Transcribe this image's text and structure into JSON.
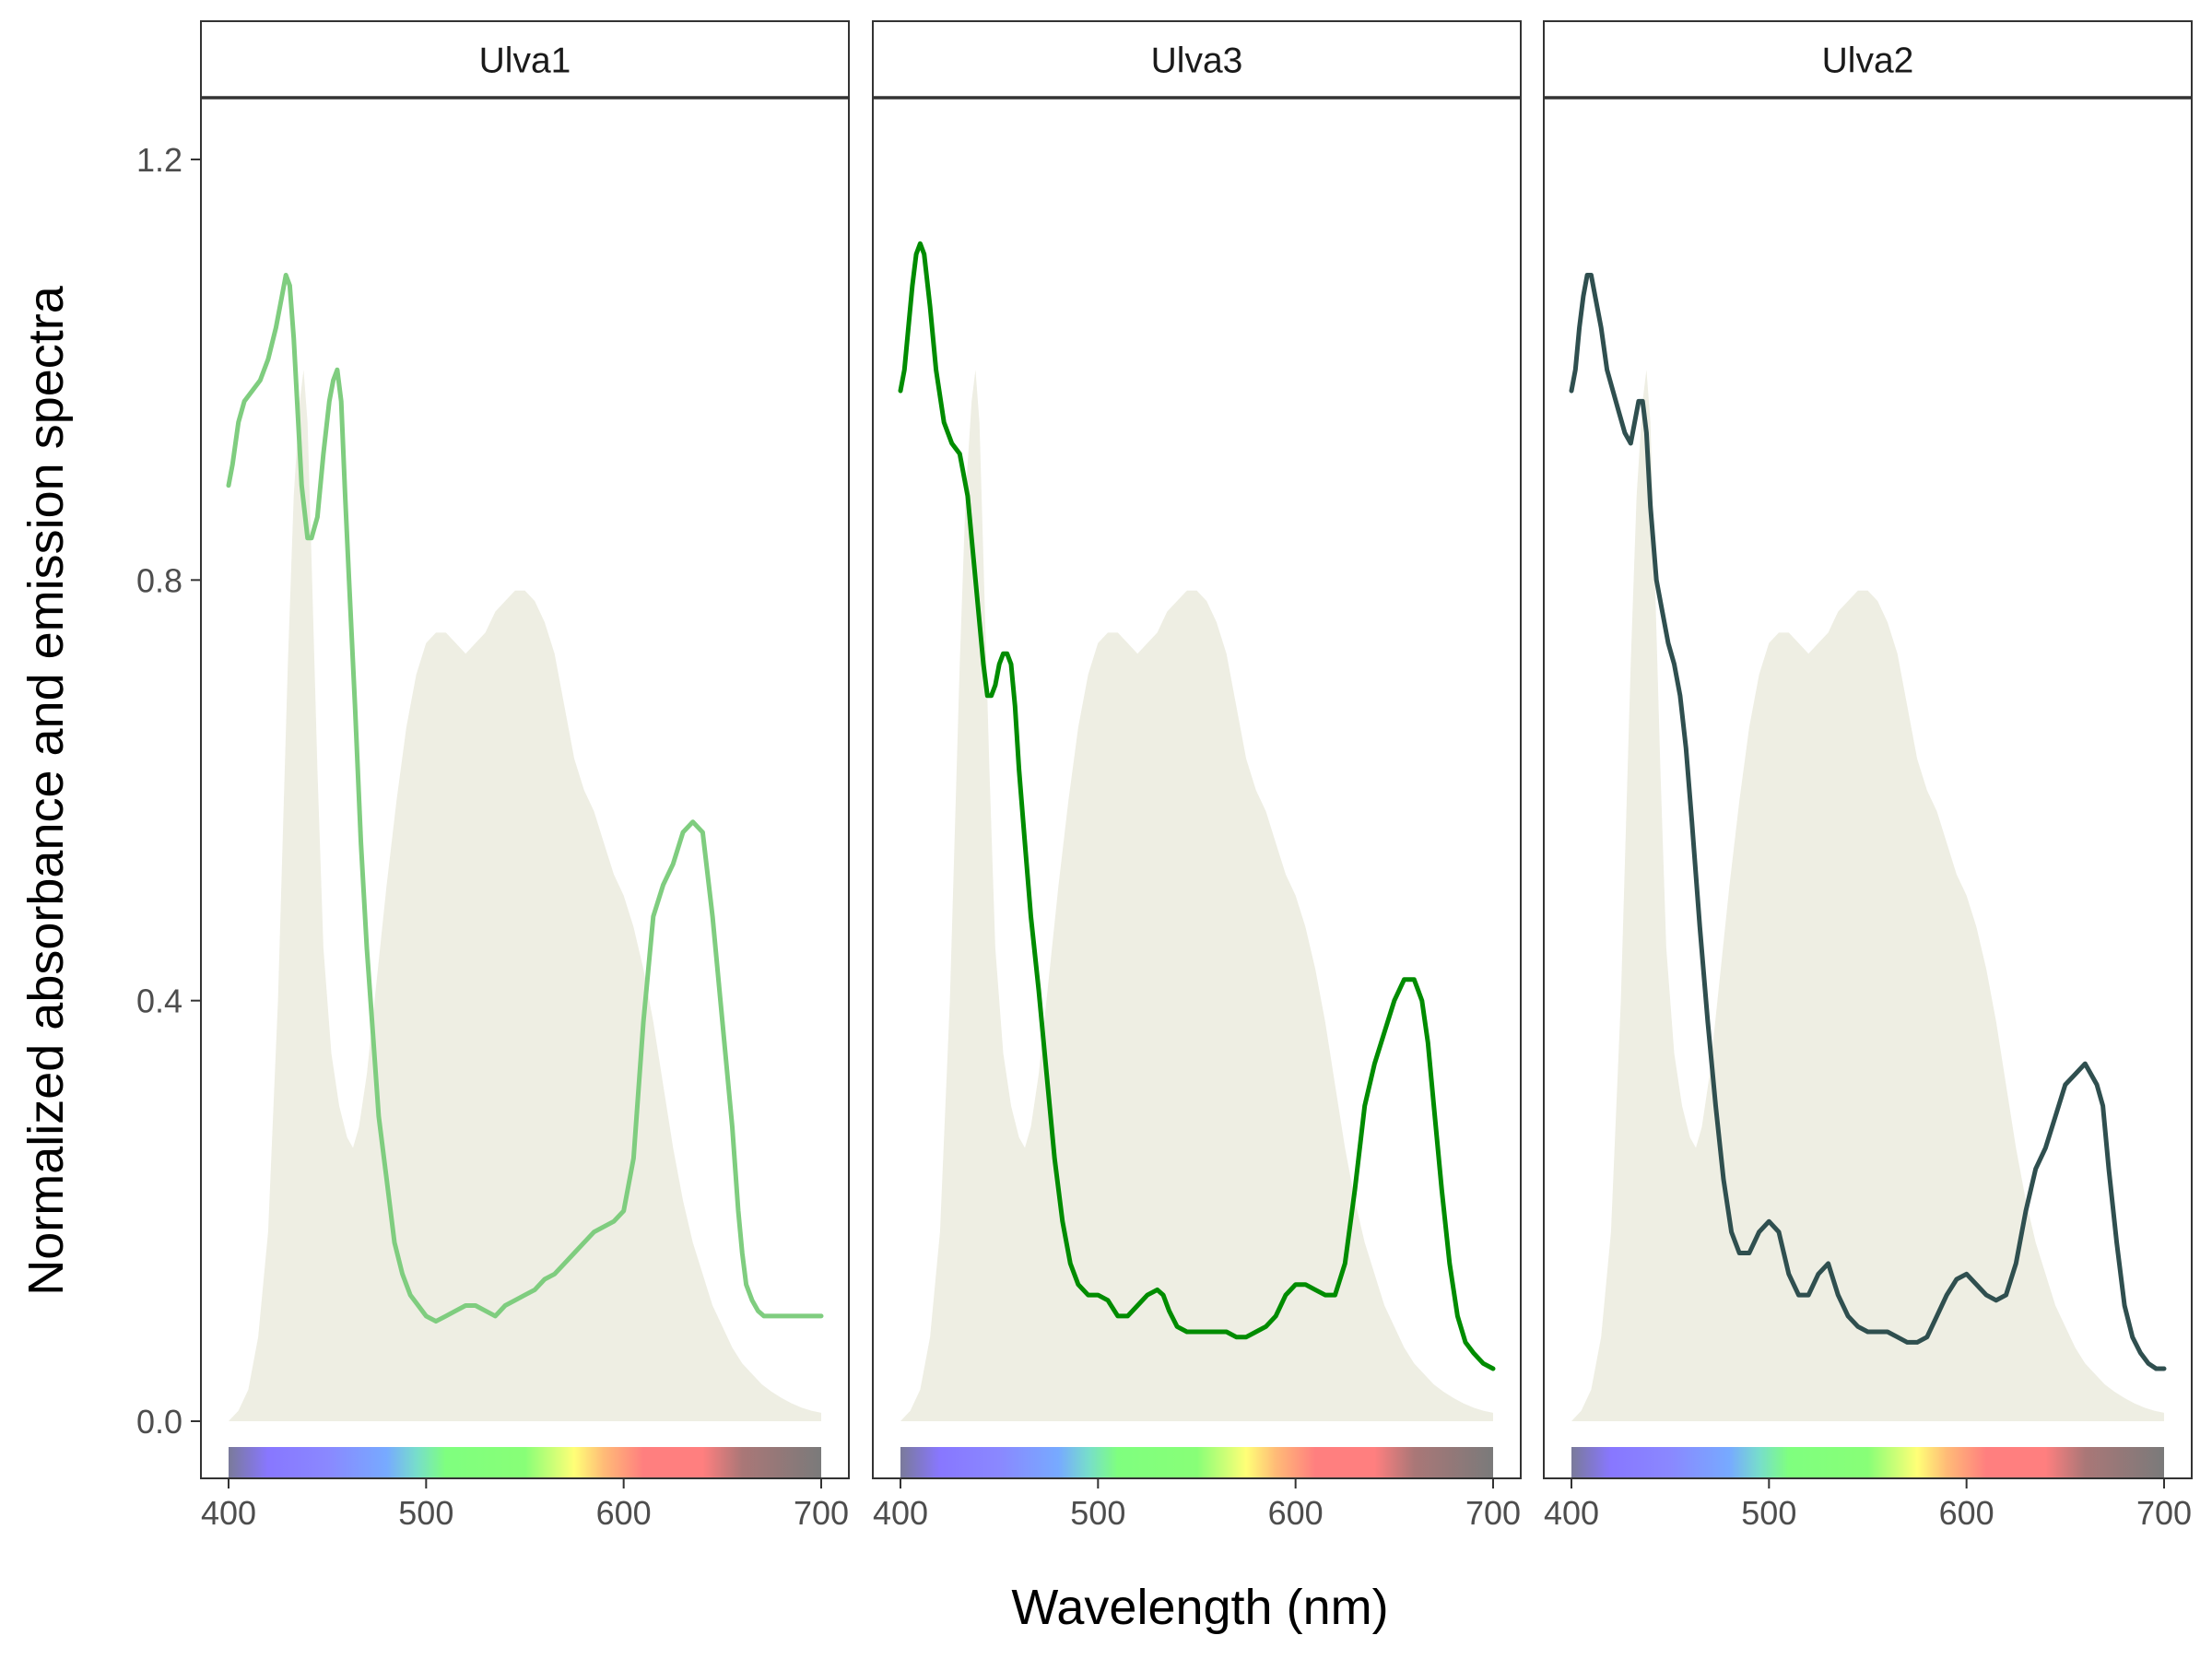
{
  "chart_data": {
    "type": "line",
    "xlabel": "Wavelength (nm)",
    "ylabel": "Normalized absorbance and emission spectra",
    "xlim": [
      400,
      700
    ],
    "ylim": [
      0,
      1.2
    ],
    "x_ticks": [
      400,
      500,
      600,
      700
    ],
    "y_ticks": [
      0.0,
      0.4,
      0.8,
      1.2
    ],
    "y_tick_labels": [
      "0.0",
      "0.4",
      "0.8",
      "1.2"
    ],
    "grid": false,
    "emission_spectrum": {
      "color": "#eeeee3",
      "x": [
        400,
        405,
        410,
        415,
        420,
        425,
        430,
        433,
        436,
        438,
        440,
        442,
        445,
        448,
        452,
        456,
        460,
        463,
        466,
        470,
        475,
        480,
        485,
        490,
        495,
        500,
        505,
        510,
        515,
        520,
        525,
        530,
        535,
        540,
        545,
        550,
        555,
        560,
        565,
        570,
        575,
        580,
        585,
        590,
        595,
        600,
        605,
        610,
        615,
        620,
        625,
        630,
        635,
        640,
        645,
        650,
        655,
        660,
        665,
        670,
        675,
        680,
        685,
        690,
        695,
        700
      ],
      "y": [
        0.0,
        0.01,
        0.03,
        0.08,
        0.18,
        0.4,
        0.72,
        0.88,
        0.97,
        1.0,
        0.95,
        0.82,
        0.62,
        0.45,
        0.35,
        0.3,
        0.27,
        0.26,
        0.28,
        0.33,
        0.42,
        0.51,
        0.59,
        0.66,
        0.71,
        0.74,
        0.75,
        0.75,
        0.74,
        0.73,
        0.74,
        0.75,
        0.77,
        0.78,
        0.79,
        0.79,
        0.78,
        0.76,
        0.73,
        0.68,
        0.63,
        0.6,
        0.58,
        0.55,
        0.52,
        0.5,
        0.47,
        0.43,
        0.38,
        0.32,
        0.26,
        0.21,
        0.17,
        0.14,
        0.11,
        0.09,
        0.07,
        0.055,
        0.045,
        0.035,
        0.028,
        0.022,
        0.017,
        0.013,
        0.01,
        0.008
      ]
    },
    "spectrum_bar": {
      "stops": [
        {
          "nm": 400,
          "color": "#7a7a9a"
        },
        {
          "nm": 420,
          "color": "#8877ff"
        },
        {
          "nm": 450,
          "color": "#8a88ff"
        },
        {
          "nm": 480,
          "color": "#77aaff"
        },
        {
          "nm": 495,
          "color": "#77ddcc"
        },
        {
          "nm": 510,
          "color": "#7fff7f"
        },
        {
          "nm": 550,
          "color": "#88ff77"
        },
        {
          "nm": 575,
          "color": "#ffff77"
        },
        {
          "nm": 590,
          "color": "#ffbb77"
        },
        {
          "nm": 610,
          "color": "#ff7f7f"
        },
        {
          "nm": 640,
          "color": "#ff7f7f"
        },
        {
          "nm": 660,
          "color": "#aa7777"
        },
        {
          "nm": 700,
          "color": "#7a7a7a"
        }
      ]
    },
    "panels": [
      {
        "label": "Ulva1",
        "color": "#7fcd7f",
        "x": [
          400,
          402,
          405,
          408,
          412,
          416,
          420,
          424,
          427,
          429,
          431,
          433,
          435,
          437,
          440,
          442,
          445,
          448,
          451,
          453,
          455,
          457,
          459,
          461,
          464,
          467,
          470,
          473,
          476,
          480,
          484,
          488,
          492,
          496,
          500,
          505,
          510,
          515,
          520,
          525,
          530,
          535,
          540,
          545,
          550,
          555,
          560,
          565,
          570,
          575,
          580,
          585,
          590,
          595,
          600,
          605,
          610,
          615,
          620,
          625,
          630,
          635,
          640,
          645,
          650,
          655,
          658,
          660,
          662,
          665,
          668,
          671,
          674,
          678,
          682,
          686,
          690,
          694,
          698,
          700
        ],
        "y": [
          0.89,
          0.91,
          0.95,
          0.97,
          0.98,
          0.99,
          1.01,
          1.04,
          1.07,
          1.09,
          1.08,
          1.03,
          0.96,
          0.89,
          0.84,
          0.84,
          0.86,
          0.92,
          0.97,
          0.99,
          1.0,
          0.97,
          0.88,
          0.8,
          0.68,
          0.55,
          0.45,
          0.37,
          0.29,
          0.23,
          0.17,
          0.14,
          0.12,
          0.11,
          0.1,
          0.095,
          0.1,
          0.105,
          0.11,
          0.11,
          0.105,
          0.1,
          0.11,
          0.115,
          0.12,
          0.125,
          0.135,
          0.14,
          0.15,
          0.16,
          0.17,
          0.18,
          0.185,
          0.19,
          0.2,
          0.25,
          0.38,
          0.48,
          0.51,
          0.53,
          0.56,
          0.57,
          0.56,
          0.48,
          0.38,
          0.28,
          0.2,
          0.16,
          0.13,
          0.115,
          0.105,
          0.1,
          0.1,
          0.1,
          0.1,
          0.1,
          0.1,
          0.1,
          0.1,
          0.1
        ]
      },
      {
        "label": "Ulva3",
        "color": "#008c00",
        "x": [
          400,
          402,
          404,
          406,
          408,
          410,
          412,
          415,
          418,
          422,
          426,
          430,
          434,
          437,
          440,
          442,
          444,
          446,
          448,
          450,
          452,
          454,
          456,
          458,
          460,
          463,
          466,
          470,
          474,
          478,
          482,
          486,
          490,
          495,
          500,
          505,
          510,
          515,
          520,
          525,
          530,
          533,
          536,
          540,
          545,
          550,
          555,
          560,
          565,
          570,
          575,
          580,
          585,
          590,
          595,
          600,
          605,
          610,
          615,
          620,
          625,
          630,
          635,
          640,
          645,
          650,
          655,
          660,
          662,
          664,
          667,
          670,
          674,
          678,
          682,
          686,
          690,
          695,
          700
        ],
        "y": [
          0.98,
          1.0,
          1.04,
          1.08,
          1.11,
          1.12,
          1.11,
          1.06,
          1.0,
          0.95,
          0.93,
          0.92,
          0.88,
          0.82,
          0.76,
          0.72,
          0.69,
          0.69,
          0.7,
          0.72,
          0.73,
          0.73,
          0.72,
          0.68,
          0.62,
          0.55,
          0.48,
          0.41,
          0.33,
          0.25,
          0.19,
          0.15,
          0.13,
          0.12,
          0.12,
          0.115,
          0.1,
          0.1,
          0.11,
          0.12,
          0.125,
          0.12,
          0.105,
          0.09,
          0.085,
          0.085,
          0.085,
          0.085,
          0.085,
          0.08,
          0.08,
          0.085,
          0.09,
          0.1,
          0.12,
          0.13,
          0.13,
          0.125,
          0.12,
          0.12,
          0.15,
          0.22,
          0.3,
          0.34,
          0.37,
          0.4,
          0.42,
          0.42,
          0.41,
          0.4,
          0.36,
          0.3,
          0.22,
          0.15,
          0.1,
          0.075,
          0.065,
          0.055,
          0.05
        ]
      },
      {
        "label": "Ulva2",
        "color": "#2f4f4f",
        "x": [
          400,
          402,
          404,
          406,
          408,
          410,
          412,
          415,
          418,
          421,
          424,
          427,
          430,
          432,
          434,
          436,
          438,
          440,
          443,
          446,
          449,
          452,
          455,
          458,
          461,
          465,
          469,
          473,
          477,
          481,
          485,
          490,
          495,
          500,
          505,
          510,
          515,
          520,
          525,
          530,
          535,
          540,
          545,
          550,
          555,
          560,
          565,
          570,
          575,
          580,
          585,
          590,
          595,
          600,
          605,
          610,
          615,
          620,
          625,
          630,
          635,
          640,
          645,
          650,
          655,
          660,
          663,
          666,
          669,
          672,
          676,
          680,
          684,
          688,
          692,
          696,
          700
        ],
        "y": [
          0.98,
          1.0,
          1.04,
          1.07,
          1.09,
          1.09,
          1.07,
          1.04,
          1.0,
          0.98,
          0.96,
          0.94,
          0.93,
          0.95,
          0.97,
          0.97,
          0.94,
          0.87,
          0.8,
          0.77,
          0.74,
          0.72,
          0.69,
          0.64,
          0.57,
          0.47,
          0.38,
          0.3,
          0.23,
          0.18,
          0.16,
          0.16,
          0.18,
          0.19,
          0.18,
          0.14,
          0.12,
          0.12,
          0.14,
          0.15,
          0.12,
          0.1,
          0.09,
          0.085,
          0.085,
          0.085,
          0.08,
          0.075,
          0.075,
          0.08,
          0.1,
          0.12,
          0.135,
          0.14,
          0.13,
          0.12,
          0.115,
          0.12,
          0.15,
          0.2,
          0.24,
          0.26,
          0.29,
          0.32,
          0.33,
          0.34,
          0.33,
          0.32,
          0.3,
          0.24,
          0.17,
          0.11,
          0.08,
          0.065,
          0.055,
          0.05,
          0.05
        ]
      }
    ]
  }
}
